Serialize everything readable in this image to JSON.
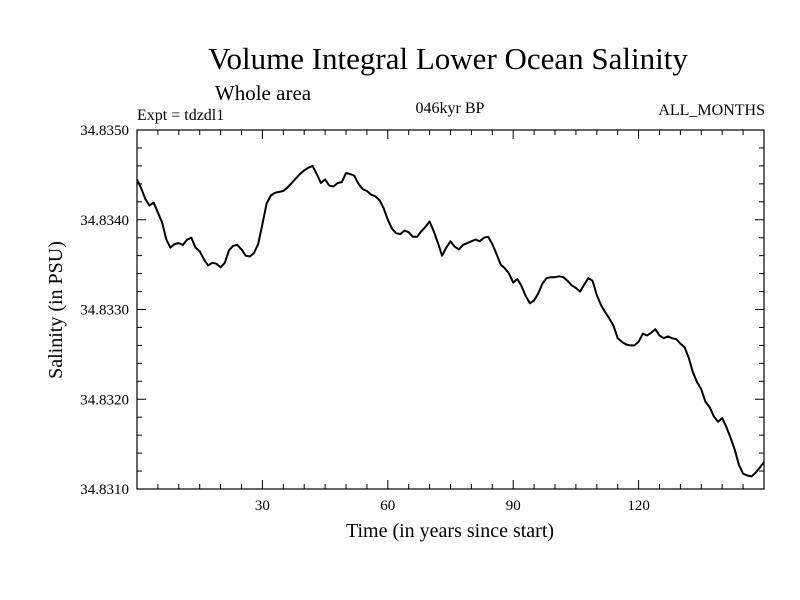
{
  "chart_data": {
    "type": "line",
    "title": "Volume Integral Lower Ocean Salinity",
    "subtitle": "Whole area",
    "left_label": "Expt = tdzdl1",
    "center_label": "046kyr BP",
    "right_label": "ALL_MONTHS",
    "xlabel": "Time (in years since start)",
    "ylabel": "Salinity (in PSU)",
    "xlim": [
      0,
      150
    ],
    "ylim": [
      34.831,
      34.835
    ],
    "x_ticks": [
      30,
      60,
      90,
      120
    ],
    "x_tick_labels": [
      "30",
      "60",
      "90",
      "120"
    ],
    "y_ticks": [
      34.831,
      34.832,
      34.833,
      34.834,
      34.835
    ],
    "y_tick_labels": [
      "34.8310",
      "34.8320",
      "34.8330",
      "34.8340",
      "34.8350"
    ],
    "grid": false,
    "series": [
      {
        "name": "salinity",
        "x": [
          0,
          1,
          2,
          3,
          4,
          5,
          6,
          7,
          8,
          9,
          10,
          11,
          12,
          13,
          14,
          15,
          16,
          17,
          18,
          19,
          20,
          21,
          22,
          23,
          24,
          25,
          26,
          27,
          28,
          29,
          30,
          31,
          32,
          33,
          34,
          35,
          36,
          37,
          38,
          39,
          40,
          41,
          42,
          43,
          44,
          45,
          46,
          47,
          48,
          49,
          50,
          51,
          52,
          53,
          54,
          55,
          56,
          57,
          58,
          59,
          60,
          61,
          62,
          63,
          64,
          65,
          66,
          67,
          68,
          69,
          70,
          71,
          72,
          73,
          74,
          75,
          76,
          77,
          78,
          79,
          80,
          81,
          82,
          83,
          84,
          85,
          86,
          87,
          88,
          89,
          90,
          91,
          92,
          93,
          94,
          95,
          96,
          97,
          98,
          99,
          100,
          101,
          102,
          103,
          104,
          105,
          106,
          107,
          108,
          109,
          110,
          111,
          112,
          113,
          114,
          115,
          116,
          117,
          118,
          119,
          120,
          121,
          122,
          123,
          124,
          125,
          126,
          127,
          128,
          129,
          130,
          131,
          132,
          133,
          134,
          135,
          136,
          137,
          138,
          139,
          140,
          141,
          142,
          143,
          144,
          145,
          146,
          147,
          148,
          149,
          150
        ],
        "values": [
          34.83445,
          34.83435,
          34.83423,
          34.83416,
          34.83419,
          34.83408,
          34.83397,
          34.83378,
          34.83369,
          34.83373,
          34.83374,
          34.83372,
          34.83378,
          34.8338,
          34.83369,
          34.83365,
          34.83356,
          34.83349,
          34.83352,
          34.83351,
          34.83347,
          34.83352,
          34.83366,
          34.83371,
          34.83372,
          34.83367,
          34.8336,
          34.83359,
          34.83363,
          34.83373,
          34.83395,
          34.83418,
          34.83427,
          34.8343,
          34.83431,
          34.83432,
          34.83436,
          34.83441,
          34.83446,
          34.83451,
          34.83455,
          34.83458,
          34.8346,
          34.83451,
          34.83441,
          34.83445,
          34.83438,
          34.83437,
          34.83441,
          34.83442,
          34.83452,
          34.83451,
          34.83449,
          34.8344,
          34.83434,
          34.83432,
          34.83428,
          34.83426,
          34.83422,
          34.83413,
          34.834,
          34.8339,
          34.83385,
          34.83384,
          34.83388,
          34.83386,
          34.83381,
          34.83381,
          34.83387,
          34.83392,
          34.83398,
          34.83387,
          34.83374,
          34.8336,
          34.83369,
          34.83376,
          34.8337,
          34.83367,
          34.83372,
          34.83374,
          34.83376,
          34.83378,
          34.83376,
          34.8338,
          34.83381,
          34.83373,
          34.83362,
          34.8335,
          34.83346,
          34.8334,
          34.8333,
          34.83334,
          34.83326,
          34.83315,
          34.83307,
          34.8331,
          34.83318,
          34.83329,
          34.83335,
          34.83336,
          34.83336,
          34.83337,
          34.83336,
          34.83332,
          34.83327,
          34.83324,
          34.8332,
          34.83328,
          34.83335,
          34.83332,
          34.83316,
          34.83305,
          34.83297,
          34.8329,
          34.83282,
          34.83268,
          34.83264,
          34.83261,
          34.8326,
          34.8326,
          34.83264,
          34.83273,
          34.83271,
          34.83274,
          34.83278,
          34.83271,
          34.83268,
          34.8327,
          34.83268,
          34.83267,
          34.83262,
          34.83258,
          34.83246,
          34.8323,
          34.83219,
          34.83211,
          34.83197,
          34.83191,
          34.83181,
          34.83175,
          34.83179,
          34.83169,
          34.83157,
          34.83144,
          34.83127,
          34.83117,
          34.83115,
          34.83114,
          34.83118,
          34.83124,
          34.8313
        ]
      }
    ]
  }
}
